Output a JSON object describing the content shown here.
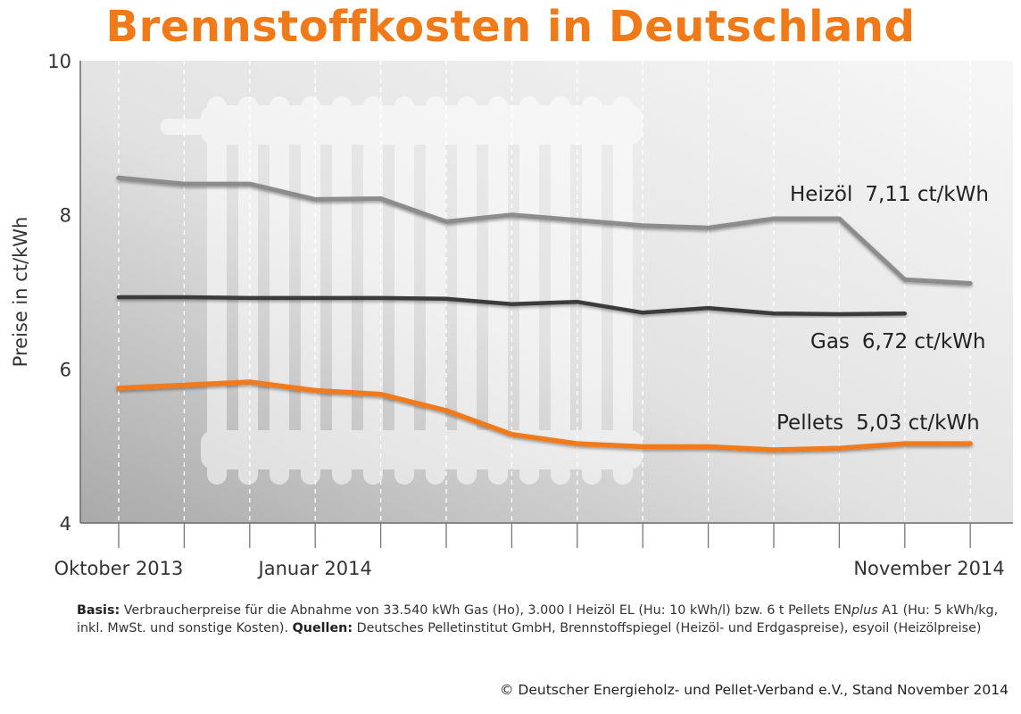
{
  "colors": {
    "title": "#f07a1a",
    "heizoel": "#8c8c8c",
    "gas": "#3a3a3a",
    "pellets": "#f07a1a"
  },
  "chart_data": {
    "type": "line",
    "title": "Brennstoffkosten in Deutschland",
    "ylabel": "Preise in ct/kWh",
    "ylim": [
      4,
      10
    ],
    "yticks": [
      4,
      6,
      8,
      10
    ],
    "x": [
      "2013-10",
      "2013-11",
      "2013-12",
      "2014-01",
      "2014-02",
      "2014-03",
      "2014-04",
      "2014-05",
      "2014-06",
      "2014-07",
      "2014-08",
      "2014-09",
      "2014-10",
      "2014-11"
    ],
    "x_tick_labels": [
      {
        "index": 0,
        "text": "Oktober 2013"
      },
      {
        "index": 3,
        "text": "Januar 2014"
      },
      {
        "index": 13,
        "text": "November 2014"
      }
    ],
    "grid": "vertical dashed",
    "series": [
      {
        "key": "heizoel",
        "label_name": "Heizöl",
        "label_value": "7,11 ct/kWh",
        "values": [
          8.48,
          8.4,
          8.4,
          8.2,
          8.21,
          7.91,
          8.0,
          7.93,
          7.86,
          7.83,
          7.95,
          7.95,
          7.16,
          7.11
        ]
      },
      {
        "key": "gas",
        "label_name": "Gas",
        "label_value": "6,72 ct/kWh",
        "values": [
          6.93,
          6.93,
          6.92,
          6.92,
          6.92,
          6.91,
          6.84,
          6.87,
          6.73,
          6.79,
          6.72,
          6.71,
          6.72,
          null
        ]
      },
      {
        "key": "pellets",
        "label_name": "Pellets",
        "label_value": "5,03 ct/kWh",
        "values": [
          5.75,
          5.79,
          5.83,
          5.72,
          5.67,
          5.46,
          5.15,
          5.03,
          4.99,
          4.99,
          4.95,
          4.97,
          5.03,
          5.03
        ]
      }
    ]
  },
  "notes": {
    "basis_label": "Basis:",
    "basis_text": "Verbraucherpreise für die Abnahme von 33.540 kWh Gas (Ho), 3.000 l Heizöl EL (Hu: 10 kWh/l) bzw. 6 t Pellets EN",
    "enplus_italic": "plus",
    "basis_text2": "A1 (Hu: 5 kWh/kg, inkl. MwSt. und sonstige Kosten).",
    "sources_label": "Quellen:",
    "sources_text": "Deutsches Pelletinstitut GmbH, Brennstoffspiegel (Heizöl- und Erdgaspreise), esyoil (Heizölpreise)"
  },
  "copyright": "© Deutscher Energieholz- und Pellet-Verband e.V., Stand November 2014"
}
